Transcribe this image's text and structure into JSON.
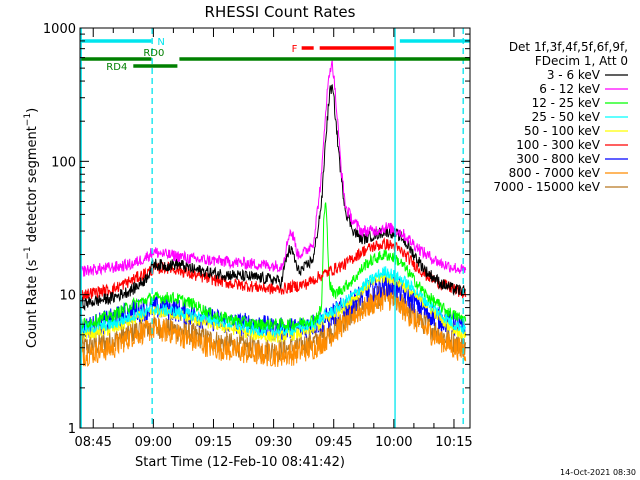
{
  "chart_data": {
    "type": "line",
    "title": "RHESSI Count Rates",
    "xlabel": "Start Time (12-Feb-10 08:41:42)",
    "ylabel": "Count Rate (s^-1 detector segment^-1)",
    "ylabel_main": "Count Rate (s",
    "ylabel_exp1": "−1",
    "ylabel_mid": " detector segment",
    "ylabel_exp2": "−1",
    "ylabel_end": ")",
    "yscale": "log",
    "ylim": [
      1,
      1000
    ],
    "xlim_minutes": [
      41.7,
      139
    ],
    "x_ticks": [
      {
        "min": 45,
        "label": "08:45"
      },
      {
        "min": 60,
        "label": "09:00"
      },
      {
        "min": 75,
        "label": "09:15"
      },
      {
        "min": 90,
        "label": "09:30"
      },
      {
        "min": 105,
        "label": "09:45"
      },
      {
        "min": 120,
        "label": "10:00"
      },
      {
        "min": 135,
        "label": "10:15"
      }
    ],
    "y_ticks": [
      {
        "value": 1,
        "label": "1"
      },
      {
        "value": 10,
        "label": "10"
      },
      {
        "value": 100,
        "label": "100"
      },
      {
        "value": 1000,
        "label": "1000"
      }
    ],
    "legend": {
      "header1": "Det 1f,3f,4f,5f,6f,9f,",
      "header2": "FDecim 1, Att 0"
    },
    "series": [
      {
        "name": "3 - 6 keV",
        "color": "#000000",
        "x": [
          42,
          50,
          55,
          58,
          60,
          63,
          66,
          70,
          75,
          80,
          85,
          90,
          92,
          93,
          94,
          95,
          96,
          98,
          100,
          102,
          103,
          104,
          104.5,
          105,
          106,
          107,
          108,
          110,
          112,
          115,
          118,
          120,
          122,
          125,
          128,
          132,
          135,
          138
        ],
        "values": [
          8.5,
          9.5,
          11,
          13,
          17,
          16.5,
          17,
          15.5,
          14.5,
          14,
          13.5,
          13,
          12.5,
          18,
          22,
          20,
          15,
          16,
          19,
          50,
          150,
          330,
          360,
          300,
          140,
          70,
          42,
          30,
          26,
          28,
          30,
          29,
          27,
          20,
          15,
          12,
          11,
          10.5
        ]
      },
      {
        "name": "6 - 12 keV",
        "color": "#ff00ff",
        "x": [
          42,
          50,
          55,
          58,
          60,
          63,
          66,
          70,
          75,
          80,
          85,
          90,
          92,
          93,
          94,
          95,
          96,
          98,
          100,
          102,
          103,
          104,
          104.5,
          105,
          106,
          107,
          108,
          110,
          112,
          115,
          118,
          120,
          122,
          125,
          128,
          132,
          135,
          138
        ],
        "values": [
          15,
          16,
          17,
          19,
          21,
          20,
          19.5,
          18.5,
          18,
          17.5,
          17,
          16.5,
          16.5,
          21,
          30,
          27,
          20,
          21,
          25,
          80,
          250,
          480,
          560,
          450,
          190,
          80,
          45,
          35,
          30,
          30,
          32,
          31,
          29,
          24,
          20,
          17,
          16,
          15
        ]
      },
      {
        "name": "12 - 25 keV",
        "color": "#00ff00",
        "x": [
          42,
          50,
          55,
          60,
          65,
          70,
          75,
          80,
          85,
          90,
          95,
          100,
          101,
          102,
          102.5,
          103,
          104,
          105,
          107,
          110,
          113,
          116,
          118,
          120,
          122,
          125,
          128,
          132,
          135,
          138
        ],
        "values": [
          6,
          7,
          8.5,
          9.5,
          9.5,
          8.5,
          7,
          6.5,
          6,
          6,
          6,
          6.5,
          7,
          8,
          35,
          50,
          12,
          10,
          11,
          13,
          17,
          19,
          20,
          19,
          17,
          13,
          10,
          8,
          7,
          6.5
        ]
      },
      {
        "name": "25 - 50 keV",
        "color": "#00ffff",
        "x": [
          42,
          50,
          55,
          60,
          65,
          70,
          75,
          80,
          85,
          90,
          95,
          100,
          103,
          106,
          110,
          113,
          116,
          118,
          120,
          122,
          125,
          128,
          132,
          135,
          138
        ],
        "values": [
          5.5,
          6,
          7,
          7.8,
          7.5,
          7,
          6.5,
          6,
          5.5,
          5.3,
          5.5,
          6,
          7,
          8,
          10,
          12,
          14,
          15,
          14,
          13,
          11,
          9,
          7,
          6,
          5.5
        ]
      },
      {
        "name": "50 - 100 keV",
        "color": "#ffff00",
        "x": [
          42,
          50,
          55,
          60,
          65,
          70,
          75,
          80,
          85,
          90,
          95,
          100,
          103,
          106,
          110,
          113,
          116,
          118,
          120,
          122,
          125,
          128,
          132,
          135,
          138
        ],
        "values": [
          5,
          5.5,
          6.5,
          7.5,
          7.2,
          6.5,
          6,
          5.5,
          5,
          4.8,
          5,
          5.5,
          6.5,
          7.5,
          9.5,
          11.5,
          13,
          13.5,
          13,
          12,
          10,
          8.5,
          6.5,
          5.5,
          5
        ]
      },
      {
        "name": "100 - 300 keV",
        "color": "#ff0000",
        "x": [
          42,
          50,
          55,
          58,
          60,
          63,
          66,
          70,
          75,
          80,
          85,
          90,
          92,
          95,
          98,
          100,
          102,
          104,
          106,
          108,
          110,
          112,
          115,
          118,
          120,
          122,
          125,
          128,
          132,
          135,
          138
        ],
        "values": [
          10,
          11,
          13,
          14.5,
          15.5,
          16,
          15.5,
          14,
          13,
          12,
          11.5,
          11,
          11,
          11.5,
          12,
          13,
          14,
          15,
          16,
          17,
          19,
          21,
          23,
          24,
          23,
          21,
          17,
          14,
          12,
          11,
          10
        ]
      },
      {
        "name": "300 - 800 keV",
        "color": "#0000ff",
        "x": [
          42,
          50,
          55,
          60,
          65,
          70,
          75,
          80,
          85,
          90,
          95,
          100,
          103,
          106,
          110,
          113,
          116,
          118,
          120,
          122,
          125,
          128,
          132,
          135,
          138
        ],
        "values": [
          5.5,
          6.5,
          7.5,
          8,
          7.8,
          7,
          6.5,
          6,
          6,
          5.5,
          5.5,
          6,
          6.5,
          7.5,
          9,
          10.5,
          11.5,
          12,
          11.5,
          10.5,
          9,
          7.5,
          6.5,
          6,
          5.5
        ]
      },
      {
        "name": "800 - 7000 keV",
        "color": "#ff8c00",
        "x": [
          42,
          50,
          55,
          60,
          65,
          70,
          75,
          80,
          85,
          90,
          95,
          100,
          103,
          106,
          110,
          113,
          116,
          118,
          120,
          122,
          125,
          128,
          132,
          135,
          138
        ],
        "values": [
          3.5,
          4,
          5,
          5.5,
          5.2,
          4.5,
          4,
          3.8,
          3.6,
          3.5,
          3.6,
          4,
          4.6,
          5.5,
          7,
          8,
          9,
          9.5,
          9,
          8,
          6.5,
          5.5,
          4.5,
          4,
          3.8
        ]
      },
      {
        "name": "7000 - 15000 keV",
        "color": "#b87820",
        "x": [
          42,
          50,
          55,
          60,
          65,
          70,
          75,
          80,
          85,
          90,
          95,
          100,
          103,
          106,
          110,
          113,
          116,
          118,
          120,
          122,
          125,
          128,
          132,
          135,
          138
        ],
        "values": [
          4,
          4.5,
          5.3,
          5.8,
          5.5,
          5,
          4.5,
          4.2,
          4,
          3.8,
          4,
          4.4,
          5,
          5.8,
          7.3,
          8.5,
          9.5,
          10,
          9.5,
          8.5,
          7,
          6,
          5,
          4.4,
          4
        ]
      }
    ],
    "annotations": [
      {
        "label": "N",
        "color": "#00e5ee",
        "segments": [
          [
            42,
            59.5
          ],
          [
            121.5,
            139
          ]
        ]
      },
      {
        "label": "RD0",
        "color": "#008000",
        "segments": [
          [
            42,
            59.5
          ],
          [
            66.5,
            139
          ]
        ]
      },
      {
        "label": "RD4",
        "color": "#008000",
        "segments": [
          [
            55,
            66
          ]
        ]
      },
      {
        "label": "F",
        "color": "#ff0000",
        "segments": [
          [
            97,
            100
          ],
          [
            101.5,
            120
          ]
        ]
      }
    ],
    "vlines": [
      {
        "min": 42.0,
        "style": "solid"
      },
      {
        "min": 59.7,
        "style": "dashed"
      },
      {
        "min": 120.3,
        "style": "solid"
      },
      {
        "min": 137.3,
        "style": "dashed"
      }
    ]
  },
  "footer": {
    "date": "14-Oct-2021 08:30"
  }
}
